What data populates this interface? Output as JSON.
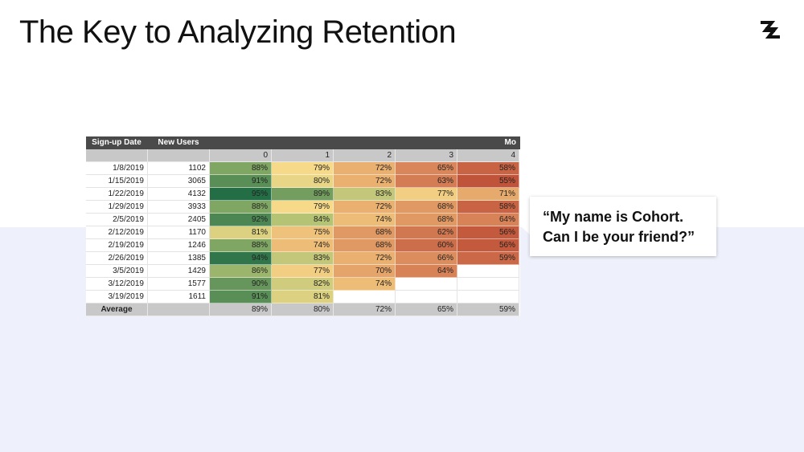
{
  "header": {
    "title": "The Key to Analyzing Retention"
  },
  "table": {
    "group_header": [
      "Sign-up Date",
      "New Users",
      "Mo"
    ],
    "columns": [
      "0",
      "1",
      "2",
      "3",
      "4"
    ],
    "rows": [
      [
        "1/8/2019",
        "1102",
        "88%",
        "79%",
        "72%",
        "65%",
        "58%"
      ],
      [
        "1/15/2019",
        "3065",
        "91%",
        "80%",
        "72%",
        "63%",
        "55%"
      ],
      [
        "1/22/2019",
        "4132",
        "95%",
        "89%",
        "83%",
        "77%",
        "71%"
      ],
      [
        "1/29/2019",
        "3933",
        "88%",
        "79%",
        "72%",
        "68%",
        "58%"
      ],
      [
        "2/5/2019",
        "2405",
        "92%",
        "84%",
        "74%",
        "68%",
        "64%"
      ],
      [
        "2/12/2019",
        "1170",
        "81%",
        "75%",
        "68%",
        "62%",
        "56%"
      ],
      [
        "2/19/2019",
        "1246",
        "88%",
        "74%",
        "68%",
        "60%",
        "56%"
      ],
      [
        "2/26/2019",
        "1385",
        "94%",
        "83%",
        "72%",
        "66%",
        "59%"
      ],
      [
        "3/5/2019",
        "1429",
        "86%",
        "77%",
        "70%",
        "64%"
      ],
      [
        "3/12/2019",
        "1577",
        "90%",
        "82%",
        "74%"
      ],
      [
        "3/19/2019",
        "1611",
        "91%",
        "81%"
      ]
    ],
    "average": {
      "label": "Average",
      "values": [
        "89%",
        "80%",
        "72%",
        "65%",
        "59%"
      ]
    }
  },
  "callout": {
    "lines": [
      "“My name is Cohort.",
      "Can I be your friend?”"
    ]
  }
}
